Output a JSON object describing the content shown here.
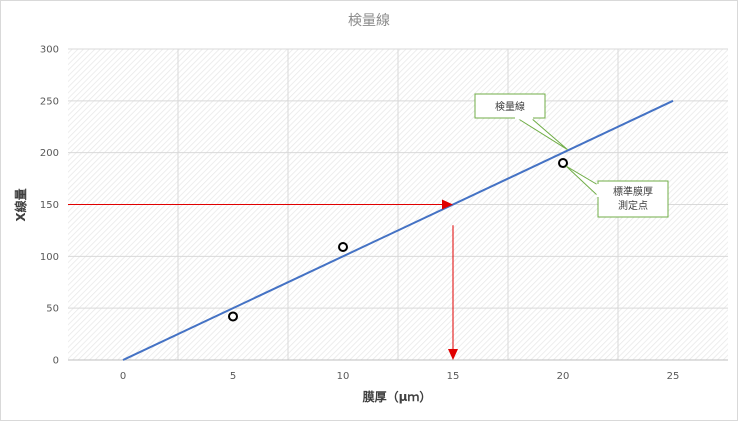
{
  "chart_data": {
    "type": "scatter",
    "title": "検量線",
    "xlabel": "膜厚（μｍ）",
    "ylabel": "X線量",
    "xlim": [
      -2.5,
      27.5
    ],
    "ylim": [
      0,
      300
    ],
    "xticks": [
      0,
      5,
      10,
      15,
      20,
      25
    ],
    "yticks": [
      0,
      50,
      100,
      150,
      200,
      250,
      300
    ],
    "grid": true,
    "legend": "none",
    "colors": {
      "line": "#4472c4",
      "marker": "#000000",
      "arrow": "#e00000",
      "callout_border": "#70ad47"
    },
    "series": [
      {
        "kind": "line",
        "x": [
          0,
          25
        ],
        "y": [
          0,
          250
        ]
      },
      {
        "kind": "points",
        "x": [
          5,
          10,
          20
        ],
        "y": [
          42,
          109,
          190
        ]
      }
    ],
    "annotations": {
      "callout_line": {
        "text": "検量線",
        "target": [
          20.2,
          203
        ]
      },
      "callout_points": {
        "lines": [
          "標準膜厚",
          "測定点"
        ],
        "target": [
          20,
          190
        ]
      },
      "arrow_horizontal": {
        "from": [
          -2.5,
          150
        ],
        "to": [
          15,
          150
        ]
      },
      "arrow_vertical": {
        "from": [
          15,
          130
        ],
        "to": [
          15,
          0
        ]
      }
    }
  }
}
